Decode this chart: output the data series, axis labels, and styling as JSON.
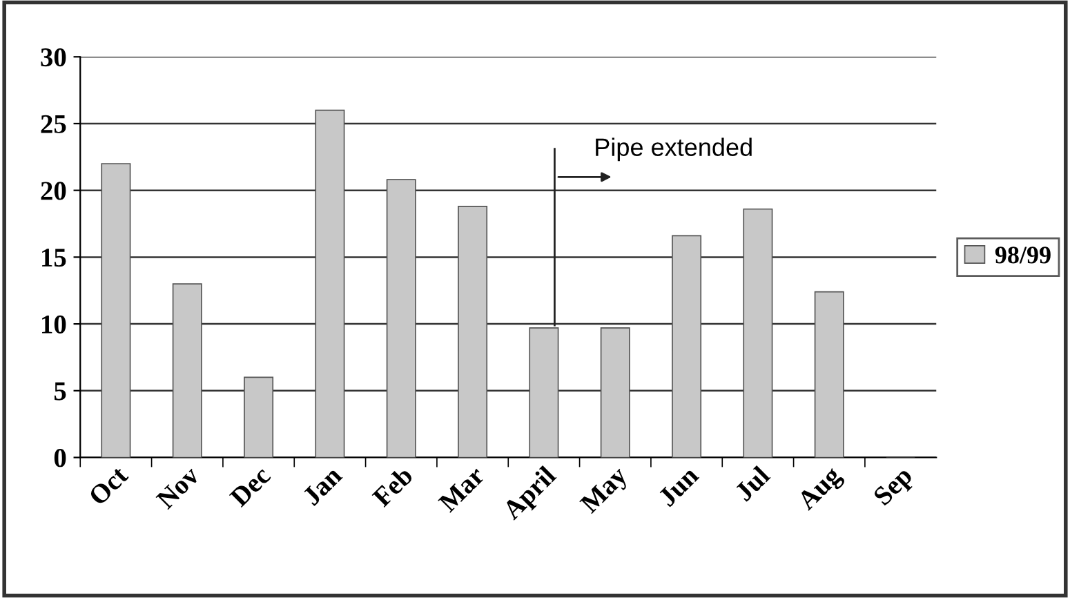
{
  "chart_data": {
    "type": "bar",
    "categories": [
      "Oct",
      "Nov",
      "Dec",
      "Jan",
      "Feb",
      "Mar",
      "April",
      "May",
      "Jun",
      "Jul",
      "Aug",
      "Sep"
    ],
    "series": [
      {
        "name": "98/99",
        "color": "#c8c8c8",
        "values": [
          22,
          13,
          6,
          26,
          20.8,
          18.8,
          9.7,
          9.7,
          16.6,
          18.6,
          12.4,
          null
        ]
      }
    ],
    "ylim": [
      0,
      30
    ],
    "yticks": [
      0,
      5,
      10,
      15,
      20,
      25,
      30
    ],
    "grid": "y",
    "legend": "right",
    "annotations": [
      "Pipe extended"
    ]
  }
}
